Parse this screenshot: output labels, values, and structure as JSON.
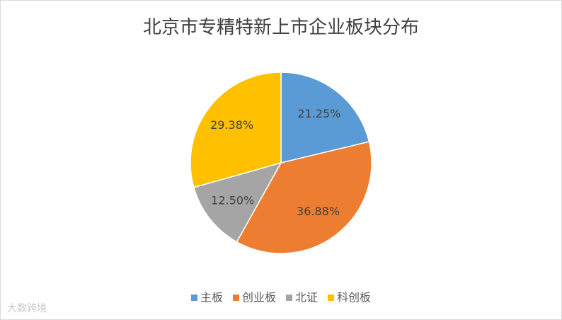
{
  "chart_data": {
    "type": "pie",
    "title": "北京市专精特新上市企业板块分布",
    "categories": [
      "主板",
      "创业板",
      "北证",
      "科创板"
    ],
    "values": [
      21.25,
      36.88,
      12.5,
      29.38
    ],
    "value_labels": [
      "21.25%",
      "36.88%",
      "12.50%",
      "29.38%"
    ],
    "colors": [
      "#5b9bd5",
      "#ed7d31",
      "#a5a5a5",
      "#ffc000"
    ],
    "legend": "bottom",
    "watermark": "大数跨境"
  }
}
